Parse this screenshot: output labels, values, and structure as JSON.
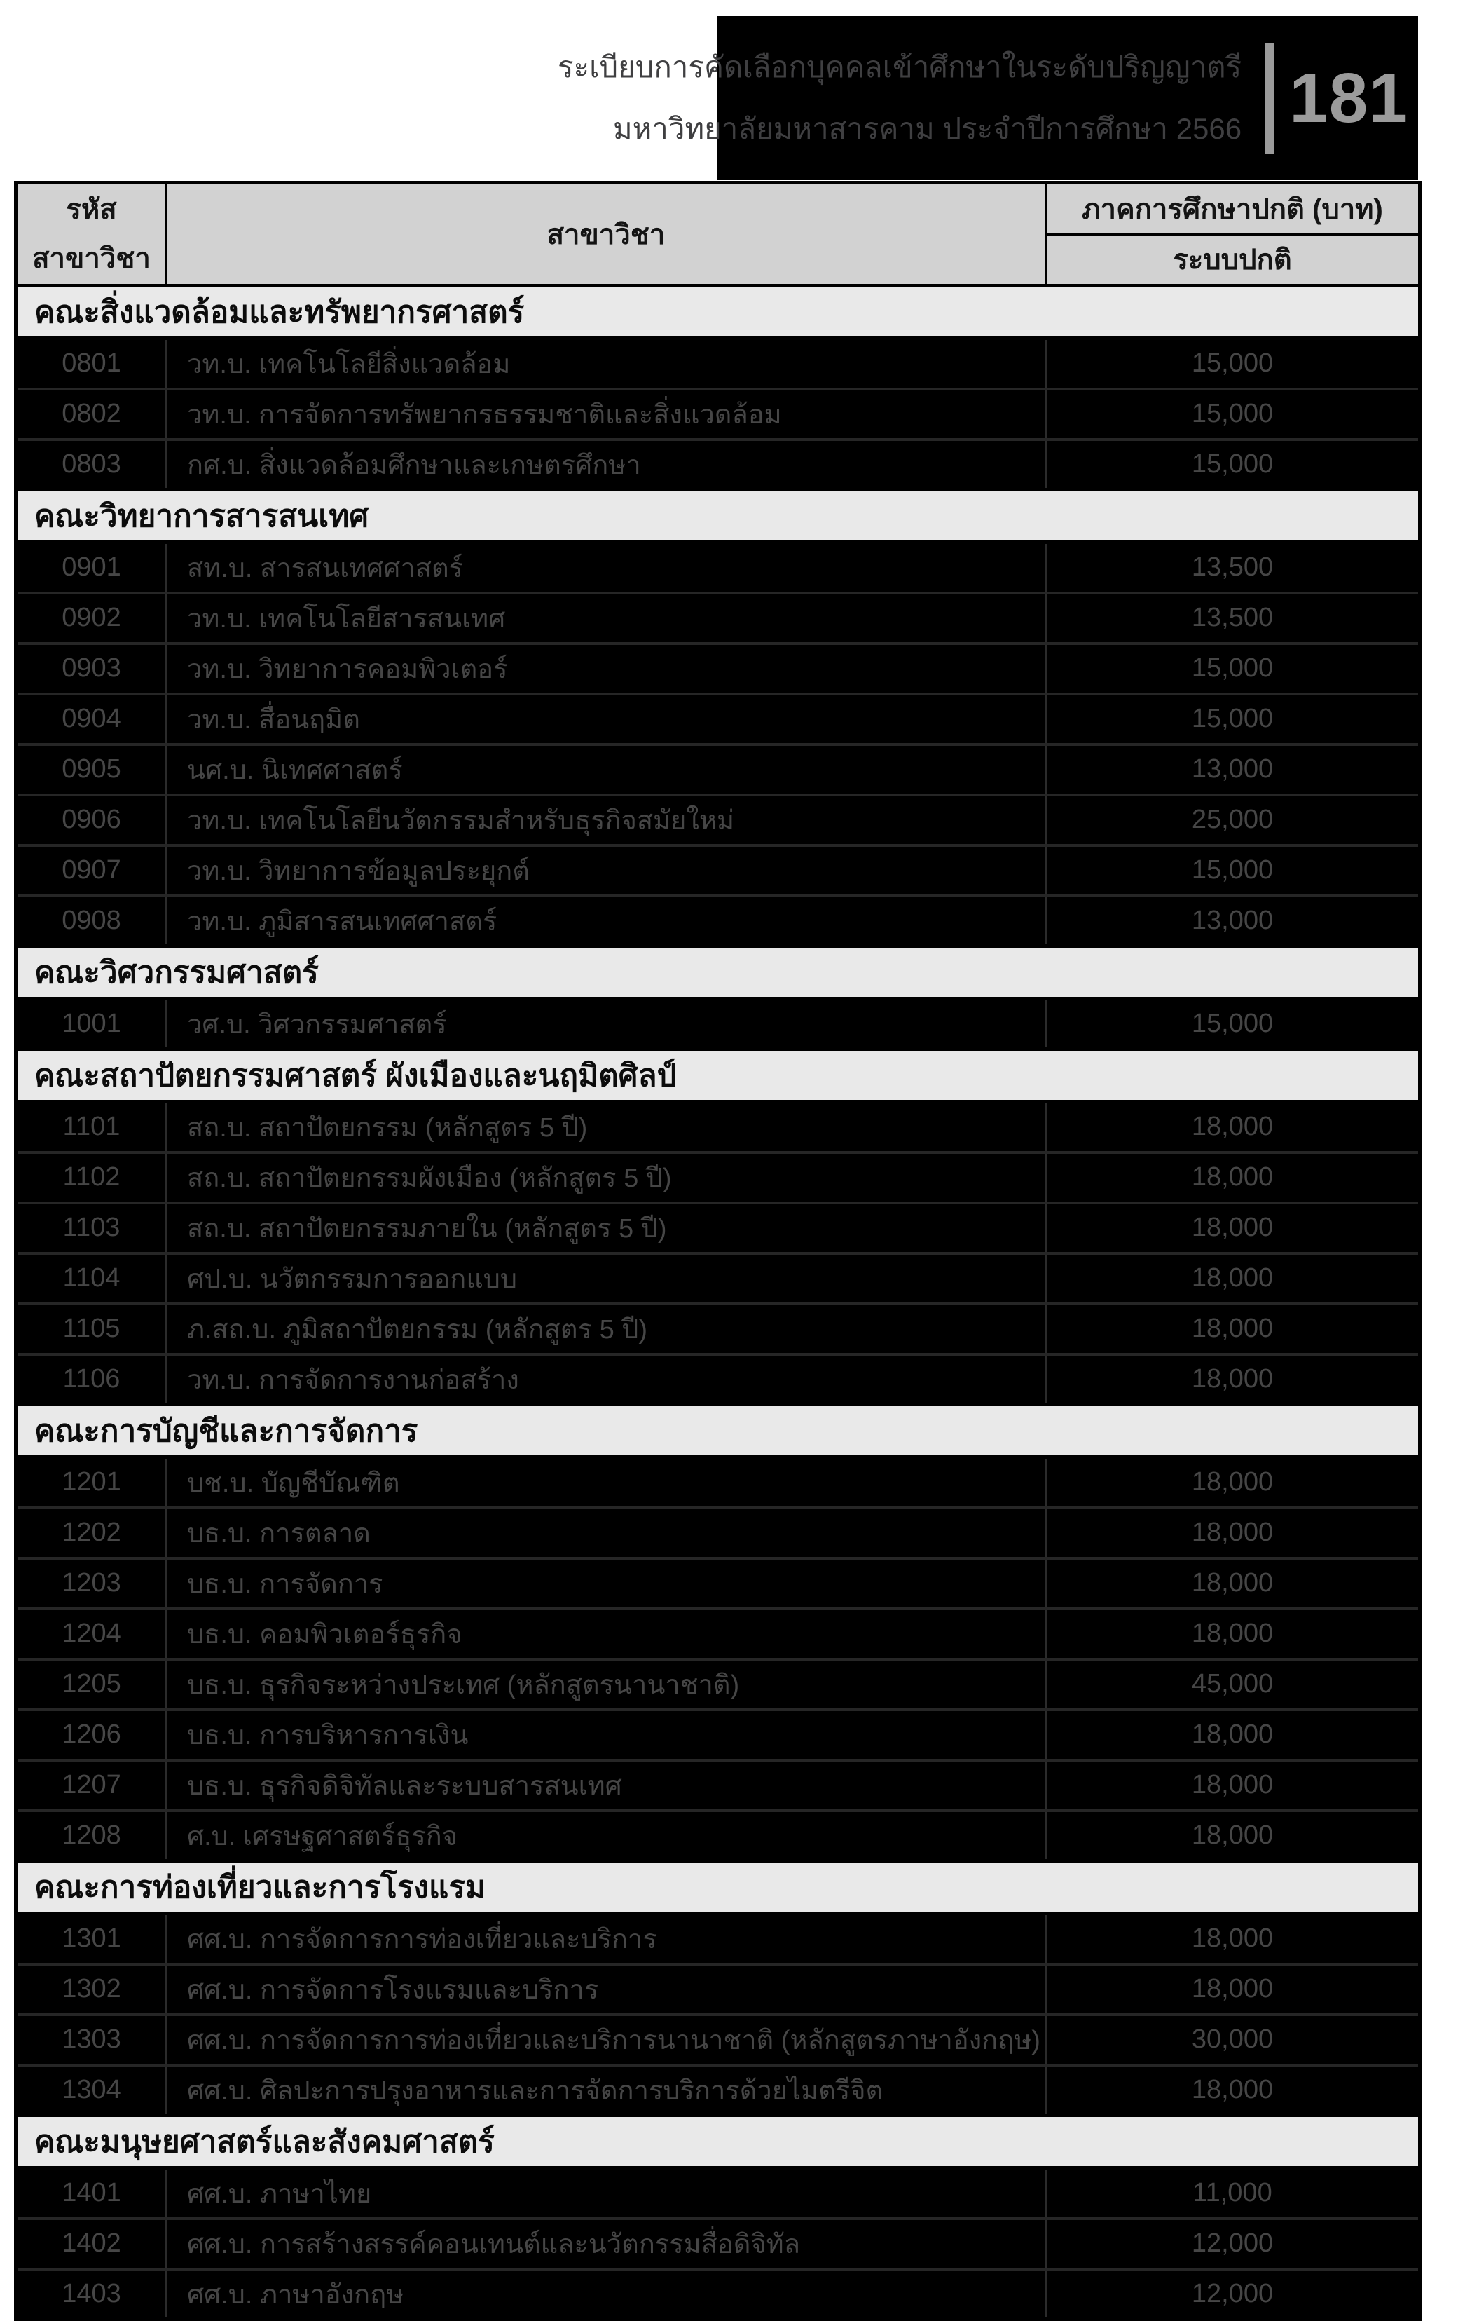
{
  "page": {
    "number": "181",
    "header_line1": "ระเบียบการคัดเลือกบุคคลเข้าศึกษาในระดับปริญญาตรี",
    "header_line2": "มหาวิทยาลัยมหาสารคาม ประจำปีการศึกษา 2566"
  },
  "table": {
    "col_code_header_line1": "รหัส",
    "col_code_header_line2": "สาขาวิชา",
    "col_major_header": "สาขาวิชา",
    "col_fee_header": "ภาคการศึกษาปกติ (บาท)",
    "col_fee_subheader": "ระบบปกติ",
    "sections": [
      {
        "faculty": "คณะสิ่งแวดล้อมและทรัพยากรศาสตร์",
        "rows": [
          [
            "0801",
            "วท.บ. เทคโนโลยีสิ่งแวดล้อม",
            "15,000"
          ],
          [
            "0802",
            "วท.บ. การจัดการทรัพยากรธรรมชาติและสิ่งแวดล้อม",
            "15,000"
          ],
          [
            "0803",
            "กศ.บ. สิ่งแวดล้อมศึกษาและเกษตรศึกษา",
            "15,000"
          ]
        ]
      },
      {
        "faculty": "คณะวิทยาการสารสนเทศ",
        "rows": [
          [
            "0901",
            "สท.บ. สารสนเทศศาสตร์",
            "13,500"
          ],
          [
            "0902",
            "วท.บ. เทคโนโลยีสารสนเทศ",
            "13,500"
          ],
          [
            "0903",
            "วท.บ. วิทยาการคอมพิวเตอร์",
            "15,000"
          ],
          [
            "0904",
            "วท.บ. สื่อนฤมิต",
            "15,000"
          ],
          [
            "0905",
            "นศ.บ. นิเทศศาสตร์",
            "13,000"
          ],
          [
            "0906",
            "วท.บ. เทคโนโลยีนวัตกรรมสำหรับธุรกิจสมัยใหม่",
            "25,000"
          ],
          [
            "0907",
            "วท.บ. วิทยาการข้อมูลประยุกต์",
            "15,000"
          ],
          [
            "0908",
            "วท.บ. ภูมิสารสนเทศศาสตร์",
            "13,000"
          ]
        ]
      },
      {
        "faculty": "คณะวิศวกรรมศาสตร์",
        "rows": [
          [
            "1001",
            "วศ.บ. วิศวกรรมศาสตร์",
            "15,000"
          ]
        ]
      },
      {
        "faculty": "คณะสถาปัตยกรรมศาสตร์ ผังเมืองและนฤมิตศิลป์",
        "rows": [
          [
            "1101",
            "สถ.บ. สถาปัตยกรรม (หลักสูตร 5 ปี)",
            "18,000"
          ],
          [
            "1102",
            "สถ.บ. สถาปัตยกรรมผังเมือง (หลักสูตร 5 ปี)",
            "18,000"
          ],
          [
            "1103",
            "สถ.บ. สถาปัตยกรรมภายใน (หลักสูตร 5 ปี)",
            "18,000"
          ],
          [
            "1104",
            "ศป.บ. นวัตกรรมการออกแบบ",
            "18,000"
          ],
          [
            "1105",
            "ภ.สถ.บ. ภูมิสถาปัตยกรรม (หลักสูตร 5 ปี)",
            "18,000"
          ],
          [
            "1106",
            "วท.บ. การจัดการงานก่อสร้าง",
            "18,000"
          ]
        ]
      },
      {
        "faculty": "คณะการบัญชีและการจัดการ",
        "rows": [
          [
            "1201",
            "บช.บ. บัญชีบัณฑิต",
            "18,000"
          ],
          [
            "1202",
            "บธ.บ. การตลาด",
            "18,000"
          ],
          [
            "1203",
            "บธ.บ. การจัดการ",
            "18,000"
          ],
          [
            "1204",
            "บธ.บ. คอมพิวเตอร์ธุรกิจ",
            "18,000"
          ],
          [
            "1205",
            "บธ.บ. ธุรกิจระหว่างประเทศ (หลักสูตรนานาชาติ)",
            "45,000"
          ],
          [
            "1206",
            "บธ.บ. การบริหารการเงิน",
            "18,000"
          ],
          [
            "1207",
            "บธ.บ. ธุรกิจดิจิทัลและระบบสารสนเทศ",
            "18,000"
          ],
          [
            "1208",
            "ศ.บ. เศรษฐศาสตร์ธุรกิจ",
            "18,000"
          ]
        ]
      },
      {
        "faculty": "คณะการท่องเที่ยวและการโรงแรม",
        "rows": [
          [
            "1301",
            "ศศ.บ. การจัดการการท่องเที่ยวและบริการ",
            "18,000"
          ],
          [
            "1302",
            "ศศ.บ. การจัดการโรงแรมและบริการ",
            "18,000"
          ],
          [
            "1303",
            "ศศ.บ. การจัดการการท่องเที่ยวและบริการนานาชาติ (หลักสูตรภาษาอังกฤษ)",
            "30,000"
          ],
          [
            "1304",
            "ศศ.บ. ศิลปะการปรุงอาหารและการจัดการบริการด้วยไมตรีจิต",
            "18,000"
          ]
        ]
      },
      {
        "faculty": "คณะมนุษยศาสตร์และสังคมศาสตร์",
        "rows": [
          [
            "1401",
            "ศศ.บ. ภาษาไทย",
            "11,000"
          ],
          [
            "1402",
            "ศศ.บ. การสร้างสรรค์คอนเทนต์และนวัตกรรมสื่อดิจิทัล",
            "12,000"
          ],
          [
            "1403",
            "ศศ.บ. ภาษาอังกฤษ",
            "12,000"
          ]
        ]
      }
    ]
  },
  "colors": {
    "header_bg": "#000000",
    "header_text": "#3f3f41",
    "page_number_color": "#9b9b9b",
    "table_header_bg": "#d2d2d2",
    "section_bg": "#e9e9e9",
    "row_bg": "#000000",
    "row_text": "#464646"
  }
}
